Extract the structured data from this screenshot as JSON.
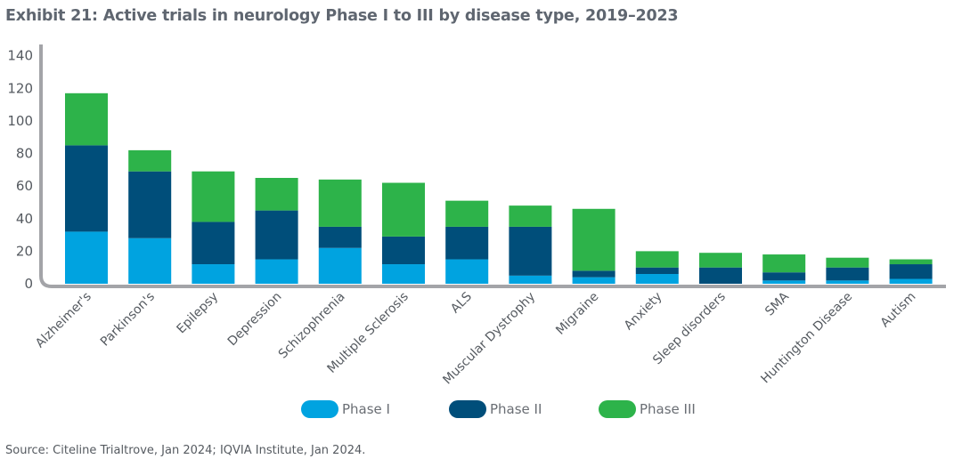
{
  "title": "Exhibit 21: Active trials in neurology Phase I to III by disease type, 2019–2023",
  "source": "Source: Citeline Trialtrove, Jan 2024; IQVIA Institute, Jan 2024.",
  "chart_data": {
    "type": "bar",
    "stacked": true,
    "title": "Exhibit 21: Active trials in neurology Phase I to III by disease type, 2019–2023",
    "xlabel": "",
    "ylabel": "",
    "ylim": [
      0,
      140
    ],
    "yticks": [
      0,
      20,
      40,
      60,
      80,
      100,
      120,
      140
    ],
    "grid": false,
    "legend_position": "bottom-center",
    "categories": [
      "Alzheimer's",
      "Parkinson's",
      "Epilepsy",
      "Depression",
      "Schizophrenia",
      "Multiple Sclerosis",
      "ALS",
      "Muscular Dystrophy",
      "Migraine",
      "Anxiety",
      "Sleep disorders",
      "SMA",
      "Huntington Disease",
      "Autism"
    ],
    "series": [
      {
        "name": "Phase I",
        "color": "#00a3e0",
        "values": [
          32,
          28,
          12,
          15,
          22,
          12,
          15,
          5,
          4,
          6,
          0,
          2,
          2,
          3
        ]
      },
      {
        "name": "Phase II",
        "color": "#004e7a",
        "values": [
          53,
          41,
          26,
          30,
          13,
          17,
          20,
          30,
          4,
          4,
          10,
          5,
          8,
          9
        ]
      },
      {
        "name": "Phase III",
        "color": "#2db34a",
        "values": [
          32,
          13,
          31,
          20,
          29,
          33,
          16,
          13,
          38,
          10,
          9,
          11,
          6,
          3
        ]
      }
    ],
    "axis_color": "#a3a4a8"
  }
}
